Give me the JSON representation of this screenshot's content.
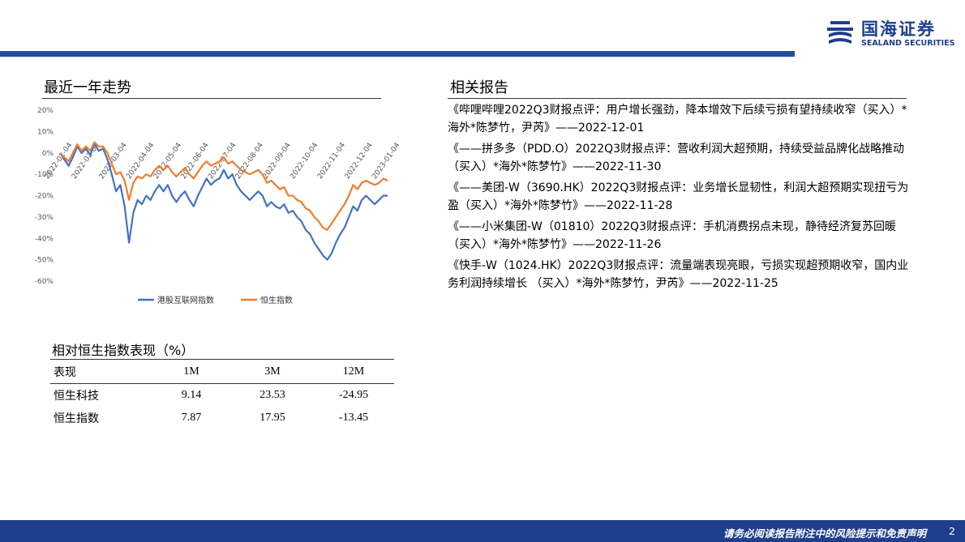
{
  "header": {
    "logo_cn": "国海证券",
    "logo_en": "SEALAND SECURITIES",
    "brand_color": "#1f4e9e"
  },
  "trend_section": {
    "title": "最近一年走势"
  },
  "reports_section": {
    "title": "相关报告",
    "items": [
      "《哔哩哔哩2022Q3财报点评：用户增长强劲，降本增效下后续亏损有望持续收窄（买入）*海外*陈梦竹，尹芮》——2022-12-01",
      "《——拼多多（PDD.O）2022Q3财报点评：营收利润大超预期，持续受益品牌化战略推动（买入）*海外*陈梦竹》——2022-11-30",
      "《——美团-W（3690.HK）2022Q3财报点评：业务增长显韧性，利润大超预期实现扭亏为盈（买入）*海外*陈梦竹》——2022-11-28",
      "《——小米集团-W（01810）2022Q3财报点评：手机消费拐点未现，静待经济复苏回暖（买入）*海外*陈梦竹》——2022-11-26",
      "《快手-W（1024.HK）2022Q3财报点评：流量端表现亮眼，亏损实现超预期收窄，国内业务利润持续增长 （买入）*海外*陈梦竹，尹芮》——2022-11-25"
    ]
  },
  "perf_table": {
    "title": "相对恒生指数表现（%）",
    "headers": [
      "表现",
      "1M",
      "3M",
      "12M"
    ],
    "rows": [
      [
        "恒生科技",
        "9.14",
        "23.53",
        "-24.95"
      ],
      [
        "恒生指数",
        "7.87",
        "17.95",
        "-13.45"
      ]
    ]
  },
  "chart_data": {
    "type": "line",
    "x_tick_labels": [
      "2022-01-04",
      "2022-02-04",
      "2022-03-04",
      "2022-04-04",
      "2022-05-04",
      "2022-06-04",
      "2022-07-04",
      "2022-08-04",
      "2022-09-04",
      "2022-10-04",
      "2022-11-04",
      "2022-12-04",
      "2023-01-04"
    ],
    "y_tick_labels": [
      "20%",
      "10%",
      "0%",
      "-10%",
      "-20%",
      "-30%",
      "-40%",
      "-50%",
      "-60%"
    ],
    "ylim": [
      -60,
      20
    ],
    "legend_position": "bottom",
    "series": [
      {
        "name": "港股互联网指数",
        "color": "#4472c4",
        "values": [
          0,
          -3,
          -6,
          -2,
          3,
          0,
          2,
          -1,
          4,
          1,
          2,
          -3,
          -10,
          -18,
          -15,
          -25,
          -42,
          -28,
          -22,
          -24,
          -20,
          -22,
          -18,
          -15,
          -18,
          -15,
          -20,
          -23,
          -20,
          -18,
          -22,
          -25,
          -20,
          -16,
          -12,
          -15,
          -13,
          -12,
          -8,
          -12,
          -10,
          -15,
          -18,
          -20,
          -22,
          -20,
          -18,
          -20,
          -25,
          -23,
          -25,
          -26,
          -24,
          -28,
          -27,
          -30,
          -32,
          -36,
          -38,
          -42,
          -45,
          -48,
          -50,
          -47,
          -42,
          -38,
          -35,
          -30,
          -25,
          -27,
          -22,
          -20,
          -22,
          -24,
          -22,
          -20,
          -20
        ]
      },
      {
        "name": "恒生指数",
        "color": "#ed7d31",
        "values": [
          0,
          -2,
          -4,
          0,
          4,
          1,
          3,
          1,
          5,
          3,
          3,
          0,
          -5,
          -10,
          -9,
          -13,
          -22,
          -14,
          -11,
          -12,
          -10,
          -11,
          -8,
          -6,
          -8,
          -6,
          -9,
          -11,
          -9,
          -7,
          -10,
          -12,
          -9,
          -6,
          -4,
          -6,
          -5,
          -4,
          -2,
          -5,
          -4,
          -6,
          -8,
          -9,
          -10,
          -9,
          -8,
          -10,
          -14,
          -13,
          -15,
          -17,
          -16,
          -20,
          -20,
          -22,
          -23,
          -26,
          -27,
          -30,
          -32,
          -35,
          -36,
          -33,
          -30,
          -27,
          -24,
          -20,
          -15,
          -17,
          -14,
          -13,
          -14,
          -15,
          -14,
          -12,
          -13
        ]
      }
    ]
  },
  "footer": {
    "disclaimer": "请务必阅读报告附注中的风险提示和免责声明",
    "page": "2"
  }
}
